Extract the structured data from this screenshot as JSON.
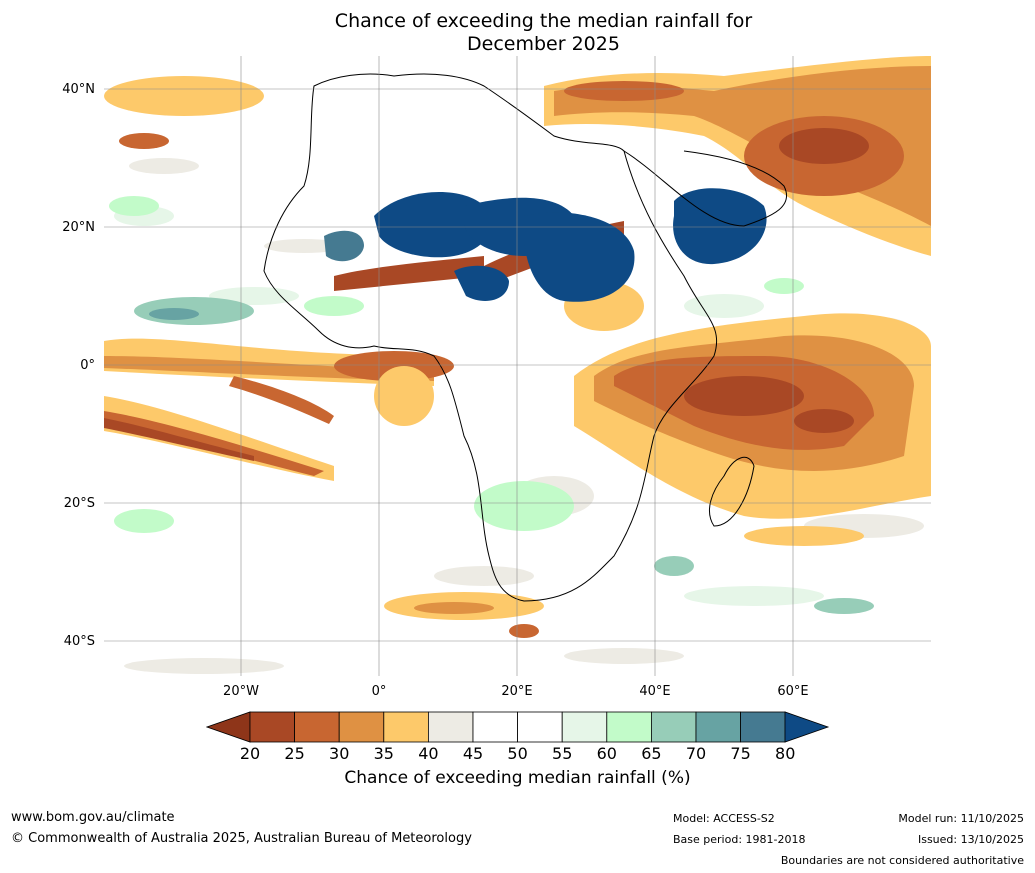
{
  "title": {
    "line1": "Chance of exceeding the median rainfall for",
    "line2": "December 2025"
  },
  "axes": {
    "lat_labels": [
      "40°N",
      "20°N",
      "0°",
      "20°S",
      "40°S"
    ],
    "lon_labels": [
      "20°W",
      "0°",
      "20°E",
      "40°E",
      "60°E"
    ]
  },
  "colorbar": {
    "ticks": [
      "20",
      "25",
      "30",
      "35",
      "40",
      "45",
      "50",
      "55",
      "60",
      "65",
      "70",
      "75",
      "80"
    ],
    "colors": [
      "#8e3519",
      "#a94825",
      "#c86631",
      "#df9143",
      "#fdc96a",
      "#edebe4",
      "#ffffff",
      "#ffffff",
      "#e6f6e8",
      "#c2fbc9",
      "#97cdb8",
      "#67a3a3",
      "#457a91",
      "#0e4a85"
    ],
    "label": "Chance of exceeding median rainfall (%)"
  },
  "footer": {
    "website": "www.bom.gov.au/climate",
    "copyright": "© Commonwealth of Australia 2025, Australian Bureau of Meteorology",
    "model": "Model: ACCESS-S2",
    "base_period": "Base period: 1981-2018",
    "model_run": "Model run: 11/10/2025",
    "issued": "Issued: 13/10/2025",
    "disclaimer": "Boundaries are not considered authoritative"
  }
}
